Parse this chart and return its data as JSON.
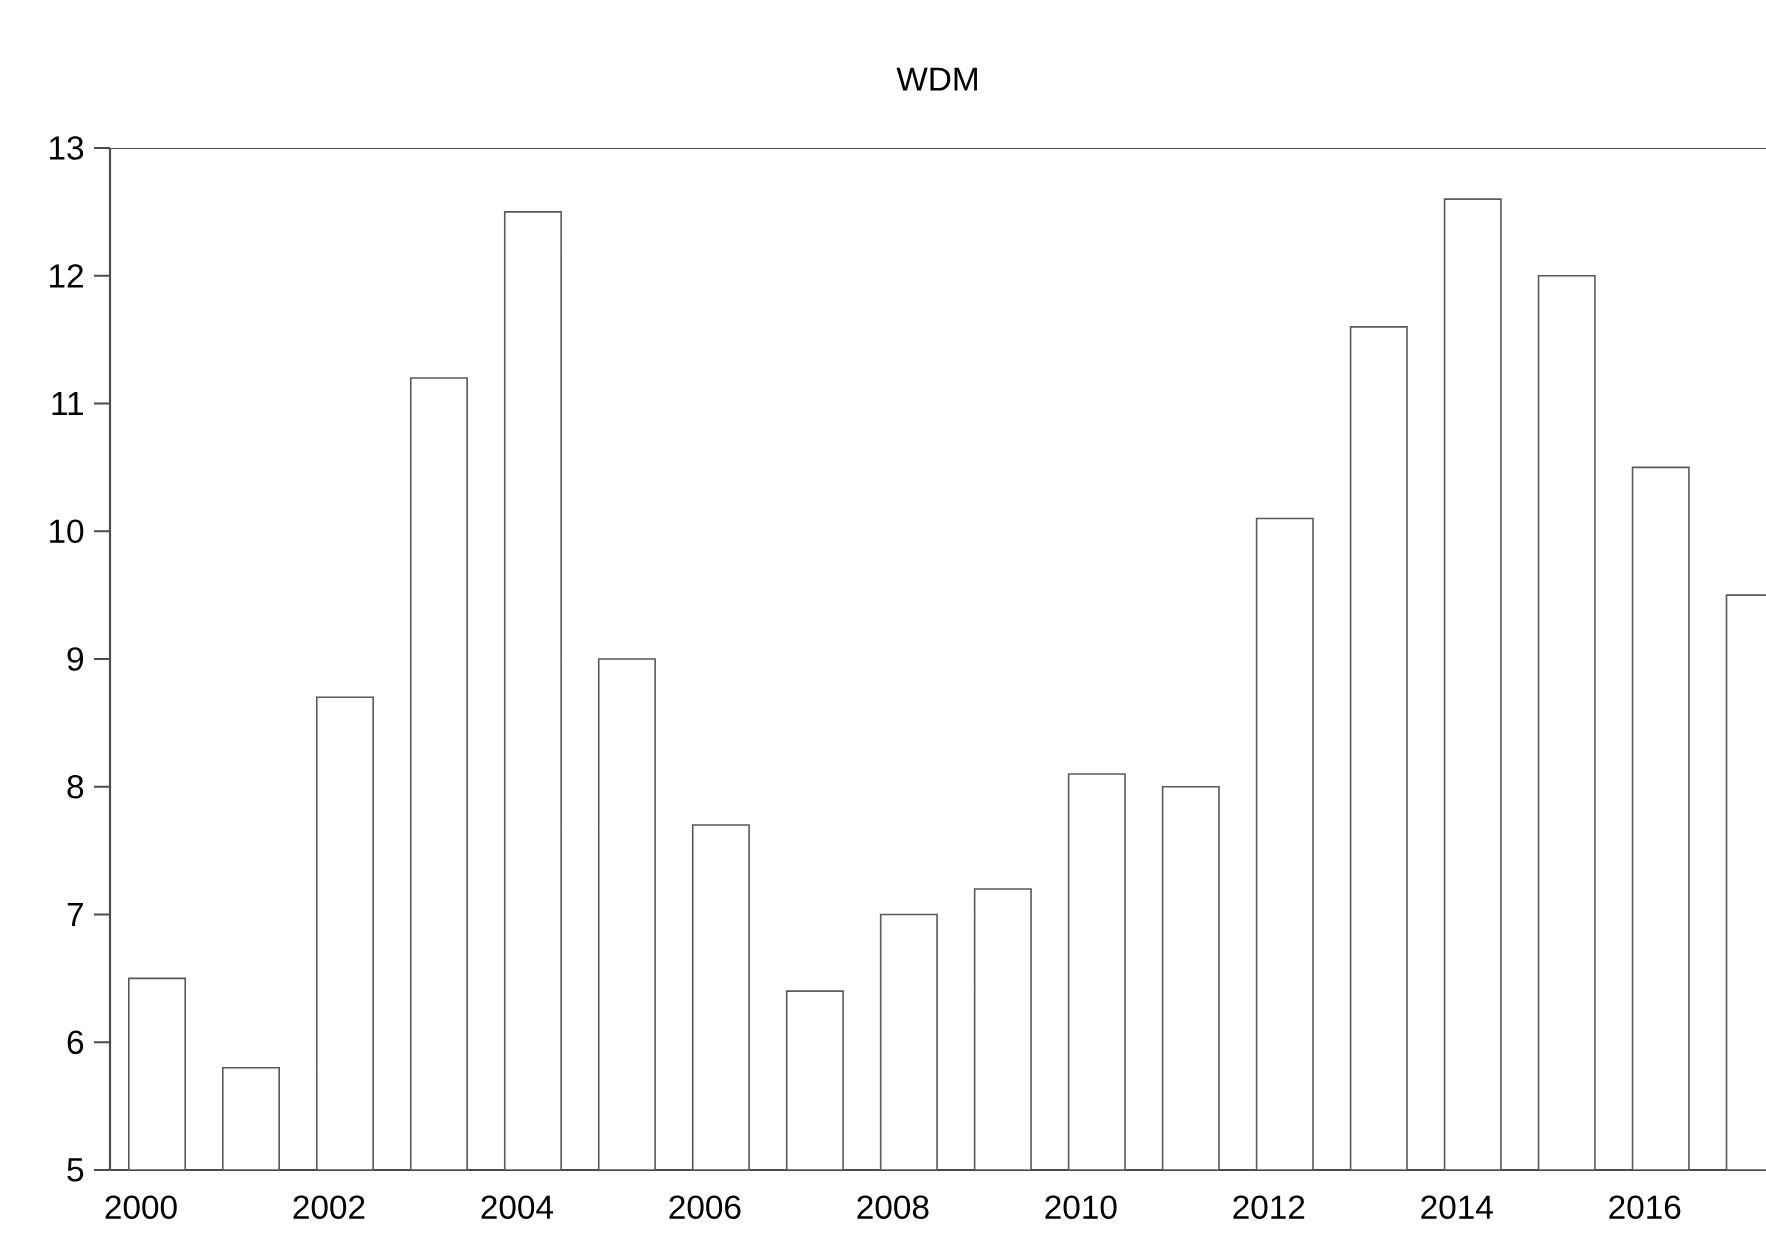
{
  "chart_data": {
    "type": "bar",
    "title": "WDM",
    "categories": [
      "2000",
      null,
      "2002",
      null,
      "2004",
      null,
      "2006",
      null,
      "2008",
      null,
      "2010",
      null,
      "2012",
      null,
      "2014",
      null,
      "2016",
      null
    ],
    "values": [
      6.5,
      5.8,
      8.7,
      11.2,
      12.5,
      9.0,
      7.7,
      6.4,
      7.0,
      7.2,
      8.1,
      8.0,
      10.1,
      11.6,
      12.6,
      12.0,
      10.5,
      9.5
    ],
    "color": "#ffffff",
    "ylim": [
      5,
      13
    ],
    "yticks": [
      5,
      6,
      7,
      8,
      9,
      10,
      11,
      12,
      13
    ],
    "grid": false
  }
}
